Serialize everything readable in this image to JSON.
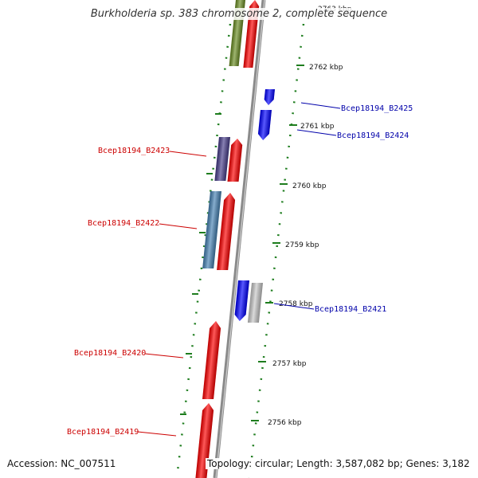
{
  "map": {
    "title": "Burkholderia sp. 383 chromosome 2, complete sequence",
    "accession_label": "Accession: NC_007511",
    "topology_label": "Topology: circular; Length: 3,587,082 bp; Genes: 3,182",
    "colors": {
      "backbone": "#8a8a8a",
      "tick": "#1e7d1e",
      "red_gene": "#ff0000",
      "blue_gene": "#0000ff",
      "olive_gene": "#6b8e23",
      "steelblue_gene": "#4682b4",
      "darkslate_gene": "#483d8b",
      "gray_gene": "#c8c8c8",
      "label_red": "#cc0000",
      "label_blue": "#0000aa"
    },
    "kbp_markers": [
      "2763 kbp",
      "2762 kbp",
      "2761 kbp",
      "2760 kbp",
      "2759 kbp",
      "2758 kbp",
      "2757 kbp",
      "2756 kbp"
    ],
    "gene_labels": {
      "b2425": "Bcep18194_B2425",
      "b2424": "Bcep18194_B2424",
      "b2423": "Bcep18194_B2423",
      "b2422": "Bcep18194_B2422",
      "b2421": "Bcep18194_B2421",
      "b2420": "Bcep18194_B2420",
      "b2419": "Bcep18194_B2419"
    }
  }
}
